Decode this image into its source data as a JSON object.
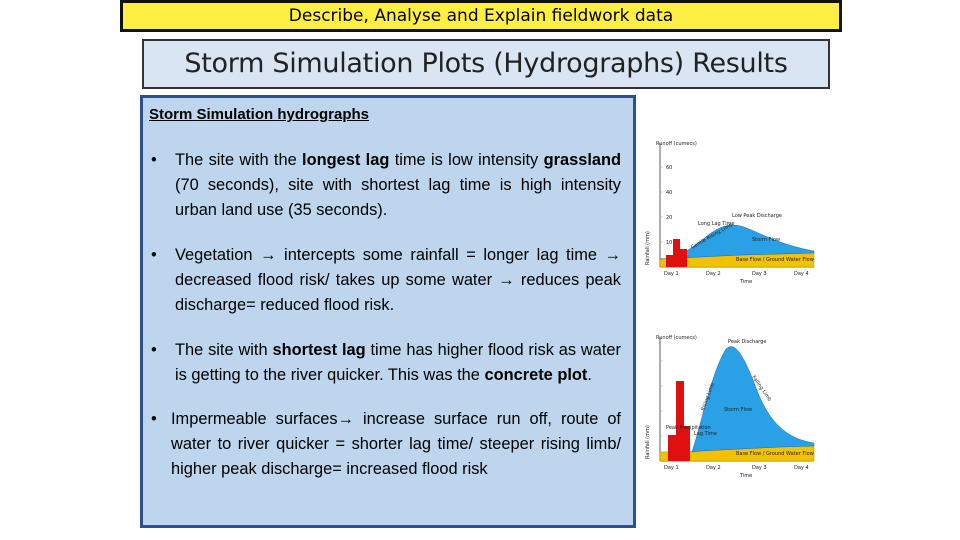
{
  "banner": "Describe, Analyse and Explain fieldwork data",
  "title": "Storm Simulation Plots (Hydrographs) Results",
  "box": {
    "heading": "Storm Simulation hydrographs",
    "b1": {
      "p1": "The site with the ",
      "s1": "longest lag",
      "p2": " time is low intensity ",
      "s2": "grassland",
      "p3": " (70 seconds), site with shortest lag time is high intensity urban land use (35 seconds)."
    },
    "b2": "Vegetation → intercepts some rainfall = longer lag time → decreased flood risk/ takes up some water → reduces peak discharge= reduced flood risk.",
    "b3": {
      "p1": "The site with ",
      "s1": "shortest lag",
      "p2": " time has higher flood risk as water is getting to the river quicker. This was the ",
      "s2": "concrete plot",
      "p3": "."
    },
    "b4": "Impermeable surfaces→ increase surface run off, route of water to river quicker = shorter lag time/ steeper rising limb/ higher peak discharge= increased flood risk"
  },
  "graph1": {
    "y_label": "Runoff (cumecs)",
    "rain_label": "Rainfall (mm)",
    "peak_label": "Low Peak Discharge",
    "lag_label": "Long Lag Time",
    "rising_label": "Gentle Rising Limb",
    "storm_label": "Storm Flow",
    "base_label": "Base Flow / Ground Water Flow",
    "x_label": "Time",
    "days": [
      "Day 1",
      "Day 2",
      "Day 3",
      "Day 4"
    ]
  },
  "graph2": {
    "y_label": "Runoff (cumecs)",
    "rain_label": "Rainfall (mm)",
    "peak_label": "Peak Discharge",
    "peak_rain_label": "Peak Precipitation",
    "lag_label": "Lag Time",
    "rising_label": "Rising Limb",
    "falling_label": "Falling Limb",
    "storm_label": "Storm Flow",
    "base_label": "Base Flow / Ground Water Flow",
    "x_label": "Time",
    "days": [
      "Day 1",
      "Day 2",
      "Day 3",
      "Day 4"
    ]
  },
  "colors": {
    "banner": "#ffee44",
    "title_bg": "#d9e5f3",
    "box_bg": "#bdd6ee",
    "storm": "#2aa0e6",
    "base": "#f2c200",
    "rain": "#e01010"
  }
}
